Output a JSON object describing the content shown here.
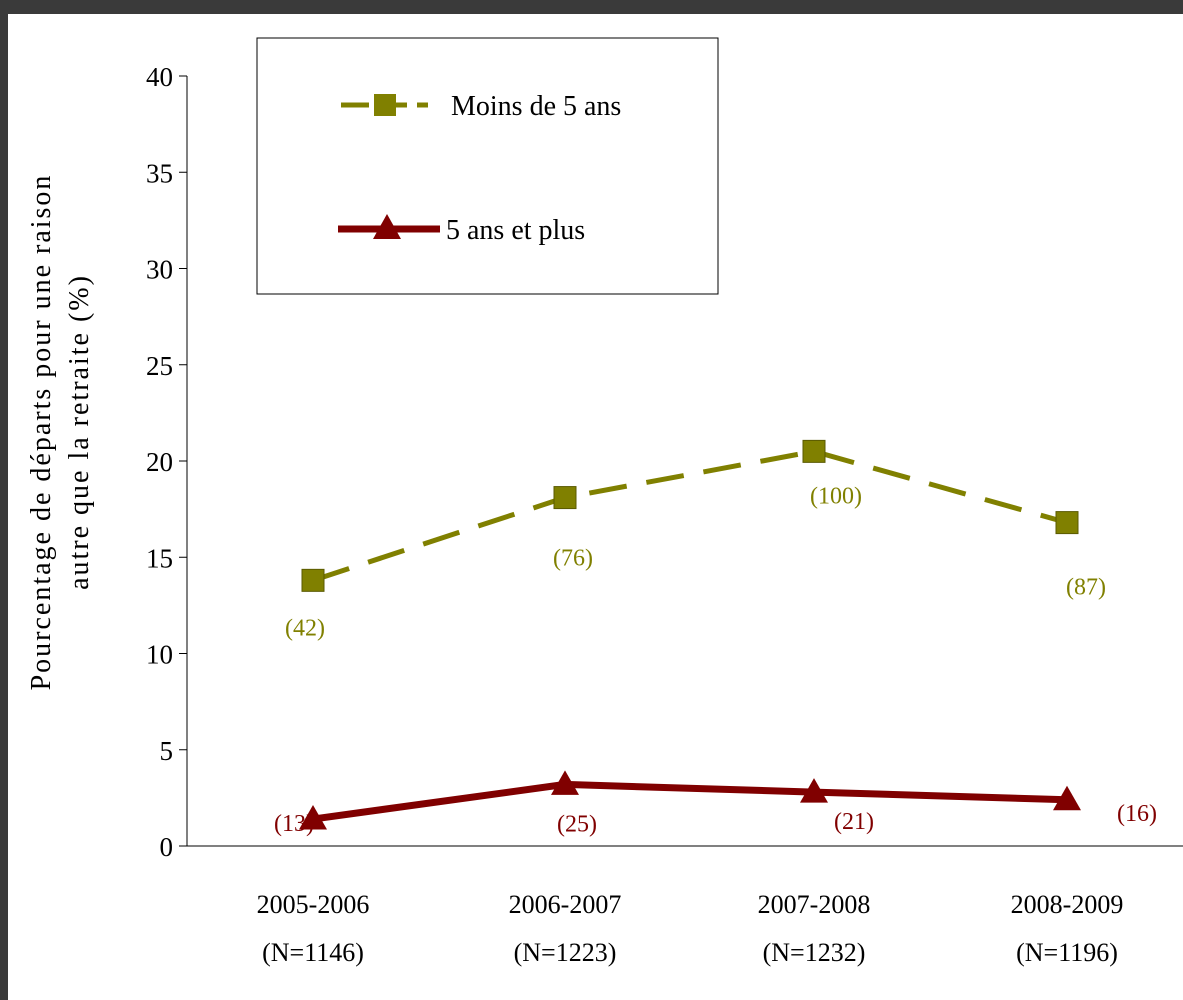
{
  "chart_data": {
    "type": "line",
    "title": "",
    "ylabel": "Pourcentage de départs pour une raison autre que la retraite (%)",
    "ylabel_lines": [
      "Pourcentage de départs pour une raison",
      "autre que la retraite (%)"
    ],
    "xlabel": "",
    "ylim": [
      0,
      40
    ],
    "yticks": [
      0,
      5,
      10,
      15,
      20,
      25,
      30,
      35,
      40
    ],
    "grid": false,
    "legend_position": "top-left",
    "categories": [
      {
        "year": "2005-2006",
        "n": "(N=1146)"
      },
      {
        "year": "2006-2007",
        "n": "(N=1223)"
      },
      {
        "year": "2007-2008",
        "n": "(N=1232)"
      },
      {
        "year": "2008-2009",
        "n": "(N=1196)"
      }
    ],
    "series": [
      {
        "name": "Moins de 5 ans",
        "color": "#808000",
        "marker": "square",
        "line_style": "dashed",
        "values": [
          13.8,
          18.1,
          20.5,
          16.8
        ],
        "counts": [
          "(42)",
          "(76)",
          "(100)",
          "(87)"
        ]
      },
      {
        "name": "5 ans et plus",
        "color": "#800000",
        "marker": "triangle",
        "line_style": "solid",
        "values": [
          1.4,
          3.2,
          2.8,
          2.4
        ],
        "counts": [
          "(13)",
          "(25)",
          "(21)",
          "(16)"
        ]
      }
    ]
  }
}
